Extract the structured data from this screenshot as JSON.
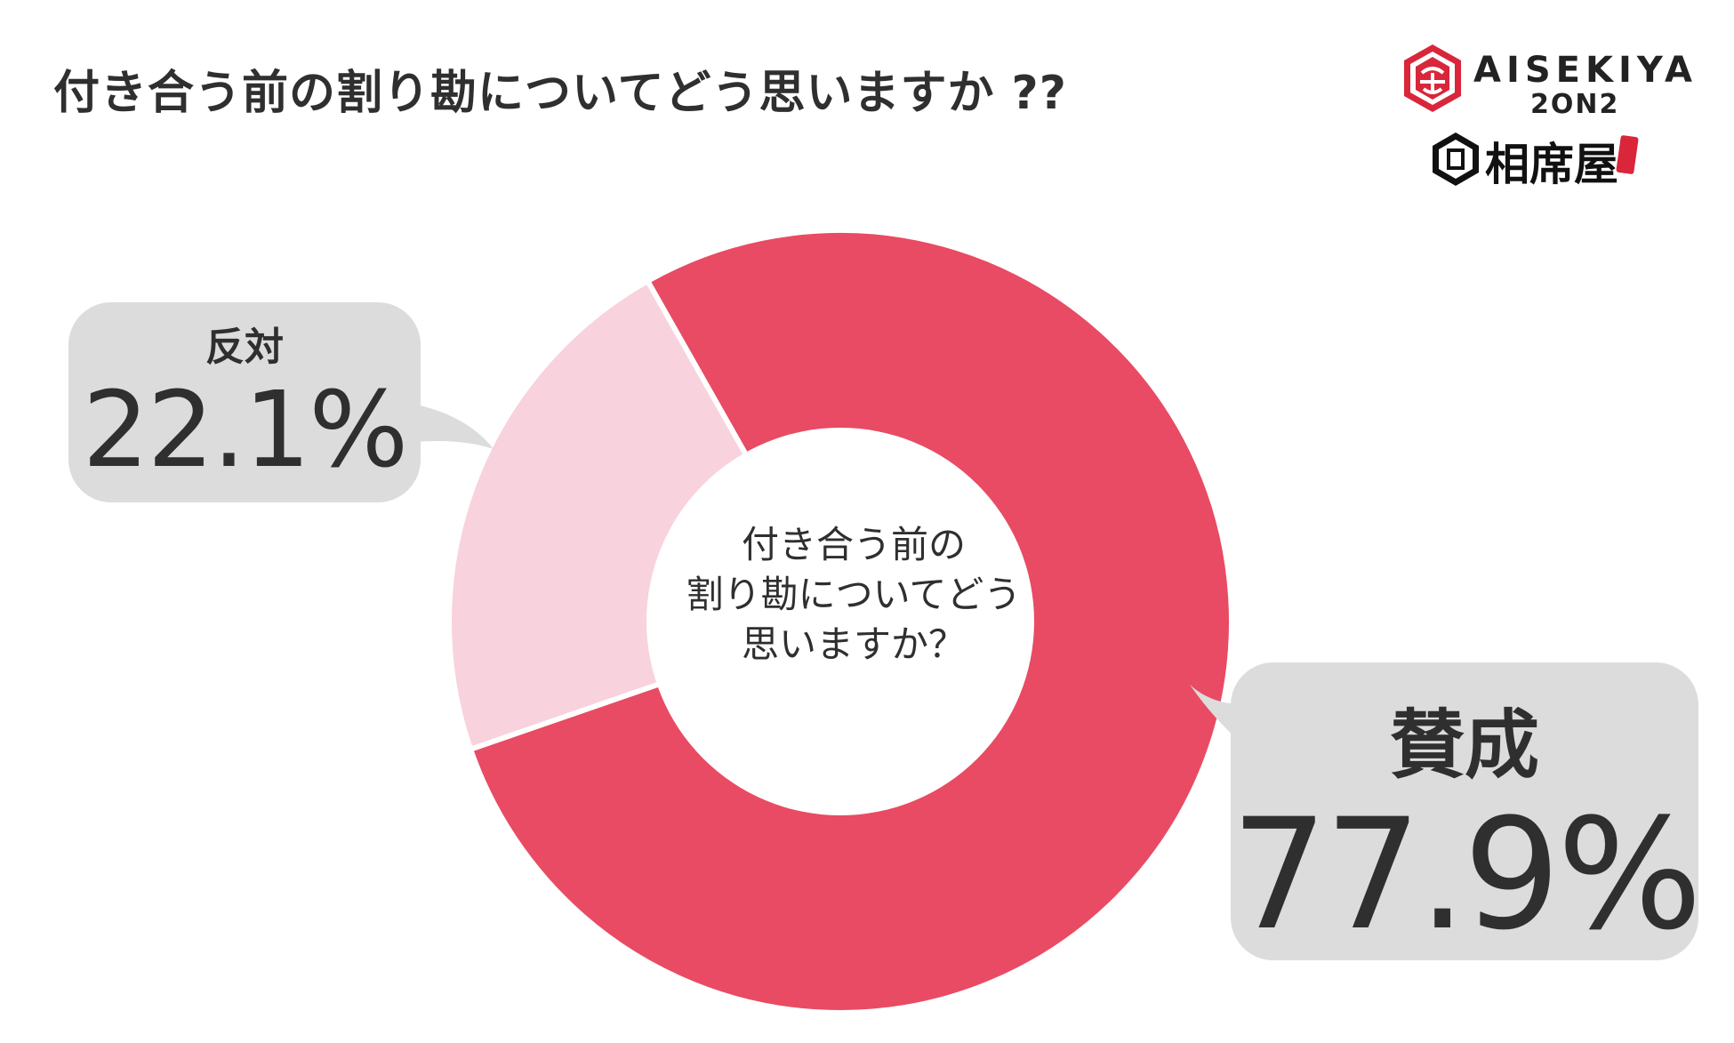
{
  "title": "付き合う前の割り勘についてどう思いますか ??",
  "logos": {
    "brand_en": "AISEKIYA",
    "brand_en_sub": "2ON2",
    "brand_jp": "相席屋"
  },
  "colors": {
    "agree": "#e84b63",
    "oppose": "#f8d2dc",
    "callout_bg": "#dcdcdc",
    "text": "#2f2f2f",
    "logo_red": "#d9263a"
  },
  "chart_data": {
    "type": "pie",
    "donut": true,
    "center_label": [
      "付き合う前の",
      "割り勘についてどう",
      "思いますか？"
    ],
    "labels": [
      "賛成",
      "反対"
    ],
    "values": [
      77.9,
      22.1
    ],
    "value_labels": [
      "77.9%",
      "22.1%"
    ],
    "colors": [
      "#e84b63",
      "#f8d2dc"
    ]
  }
}
